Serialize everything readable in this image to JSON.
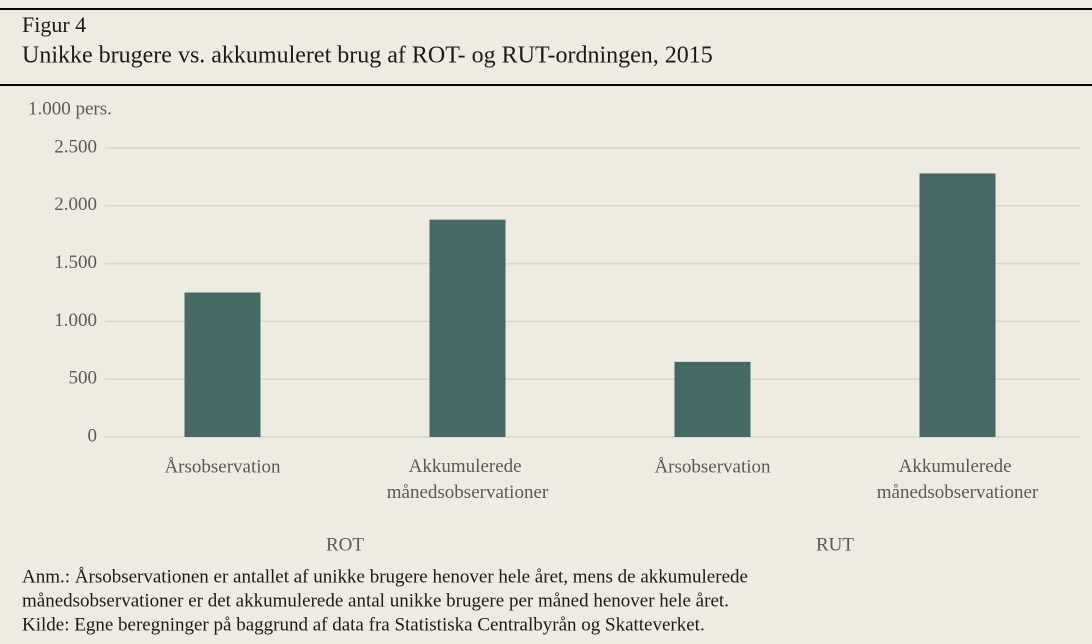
{
  "chart_data": {
    "type": "bar",
    "figure_label": "Figur 4",
    "title": "Unikke brugere vs. akkumuleret brug af ROT- og RUT-ordningen, 2015",
    "y_unit_label": "1.000 pers.",
    "categories": [
      "Årsobservation",
      "Akkumulerede månedsobservationer",
      "Årsobservation",
      "Akkumulerede månedsobservationer"
    ],
    "groups": [
      "ROT",
      "RUT"
    ],
    "values": [
      1250,
      1880,
      650,
      2280
    ],
    "color": "#466966",
    "ylim": [
      0,
      2500
    ],
    "yticks": [
      0,
      500,
      {
        "value": 1000,
        "label": "1.000"
      },
      {
        "value": 1500,
        "label": "1.500"
      },
      {
        "value": 2000,
        "label": "2.000"
      },
      {
        "value": 2500,
        "label": "2.500"
      }
    ],
    "grid": true,
    "notes": [
      "Anm.: Årsobservationen er antallet af unikke brugere henover hele året, mens de akkumulerede",
      "månedsobservationer er det akkumulerede antal unikke brugere per måned henover hele året.",
      "Kilde: Egne beregninger på baggrund af data fra Statistiska Centralbyrån og Skatteverket."
    ]
  }
}
